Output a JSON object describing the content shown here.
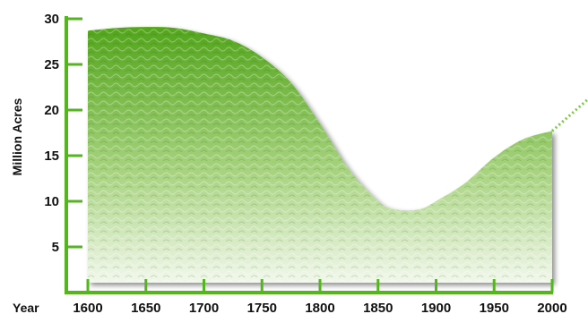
{
  "chart_data": {
    "type": "area",
    "title": "",
    "xlabel": "Year",
    "ylabel": "Million Acres",
    "xlim": [
      1600,
      2000
    ],
    "ylim": [
      0,
      30
    ],
    "x_ticks": [
      1600,
      1650,
      1700,
      1750,
      1800,
      1850,
      1900,
      1950,
      2000
    ],
    "y_ticks": [
      5,
      10,
      15,
      20,
      25,
      30
    ],
    "y_tick_labels_shown": [
      5,
      10,
      15,
      20,
      25,
      30
    ],
    "grid": false,
    "series": [
      {
        "x": [
          1600,
          1625,
          1650,
          1675,
          1700,
          1725,
          1750,
          1775,
          1800,
          1825,
          1850,
          1862,
          1875,
          1888,
          1900,
          1925,
          1950,
          1975,
          2000
        ],
        "y": [
          28.7,
          29.0,
          29.1,
          29.0,
          28.4,
          27.6,
          25.8,
          23.0,
          18.5,
          13.5,
          10.0,
          9.2,
          9.0,
          9.2,
          10.0,
          12.0,
          14.8,
          16.8,
          17.7
        ]
      }
    ],
    "projection": {
      "x": [
        2000,
        2020
      ],
      "y": [
        17.7,
        20.0
      ],
      "style": "dotted"
    },
    "colors": {
      "axis": "#55b51f",
      "fill_top": "#52a51b",
      "fill_bottom": "#f2f8ec",
      "projection": "#7ac943"
    }
  }
}
